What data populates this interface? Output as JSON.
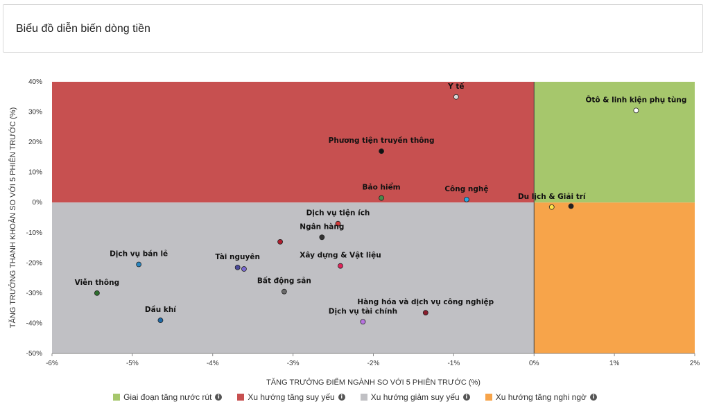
{
  "header": {
    "title": "Biểu đồ diễn biến dòng tiền"
  },
  "colors": {
    "quadrant_top_right": "#a6c76c",
    "quadrant_top_left": "#c75050",
    "quadrant_bottom_left": "#c0c0c4",
    "quadrant_bottom_right": "#f7a44a"
  },
  "chart_data": {
    "type": "scatter",
    "title": "",
    "xlabel": "TĂNG TRƯỞNG ĐIỂM NGÀNH SO VỚI 5 PHIÊN TRƯỚC (%)",
    "ylabel": "TĂNG TRƯỞNG THANH KHOẢN SO VỚI 5 PHIÊN TRƯỚC (%)",
    "xlim": [
      -6,
      2
    ],
    "ylim": [
      -50,
      40
    ],
    "x_ticks": [
      -6,
      -5,
      -4,
      -3,
      -2,
      -1,
      0,
      1,
      2
    ],
    "y_ticks": [
      40,
      30,
      20,
      10,
      0,
      -10,
      -20,
      -30,
      -40,
      -50
    ],
    "x_tick_labels": [
      "-6%",
      "-5%",
      "-4%",
      "-3%",
      "-2%",
      "-1%",
      "0%",
      "1%",
      "2%"
    ],
    "y_tick_labels": [
      "40%",
      "30%",
      "20%",
      "10%",
      "0%",
      "-10%",
      "-20%",
      "-30%",
      "-40%",
      "-50%"
    ],
    "points": [
      {
        "label": "Y tế",
        "x": -0.97,
        "y": 35.0,
        "color": "#d8d8d8"
      },
      {
        "label": "Ôtô & linh kiện phụ tùng",
        "x": 1.27,
        "y": 30.5,
        "color": "#ffffff"
      },
      {
        "label": "Phương tiện truyền thông",
        "x": -1.9,
        "y": 17.0,
        "color": "#111111"
      },
      {
        "label": "Bảo hiểm",
        "x": -1.9,
        "y": 1.5,
        "color": "#4a8a4a"
      },
      {
        "label": "Công nghệ",
        "x": -0.84,
        "y": 1.0,
        "color": "#29a8e0"
      },
      {
        "label": "Du lịch & Giải trí",
        "x": 0.22,
        "y": -1.5,
        "color": "#ffe44a"
      },
      {
        "label": "",
        "x": 0.46,
        "y": -1.2,
        "color": "#222222"
      },
      {
        "label": "Dịch vụ tiện ích",
        "x": -2.44,
        "y": -7.0,
        "color": "#d23a3a"
      },
      {
        "label": "Ngân hàng",
        "x": -2.64,
        "y": -11.5,
        "color": "#333333"
      },
      {
        "label": "",
        "x": -3.16,
        "y": -13.0,
        "color": "#b01e2e"
      },
      {
        "label": "Dịch vụ bán lẻ",
        "x": -4.92,
        "y": -20.5,
        "color": "#2a86c0"
      },
      {
        "label": "Tài nguyên",
        "x": -3.69,
        "y": -21.5,
        "color": "#4a4a9a"
      },
      {
        "label": "",
        "x": -3.61,
        "y": -22.0,
        "color": "#7a6ad2"
      },
      {
        "label": "Xây dựng & Vật liệu",
        "x": -2.41,
        "y": -21.0,
        "color": "#e0245a"
      },
      {
        "label": "Viễn thông",
        "x": -5.44,
        "y": -30.0,
        "color": "#2e6e2e"
      },
      {
        "label": "Bất động sản",
        "x": -3.11,
        "y": -29.5,
        "color": "#6a6a6a"
      },
      {
        "label": "Dầu khí",
        "x": -4.65,
        "y": -39.0,
        "color": "#1e6aa8"
      },
      {
        "label": "Hàng hóa và dịch vụ công nghiệp",
        "x": -1.35,
        "y": -36.5,
        "color": "#8a1e2e"
      },
      {
        "label": "Dịch vụ tài chính",
        "x": -2.13,
        "y": -39.5,
        "color": "#b874e0"
      }
    ],
    "legend_position": "bottom",
    "legend": [
      {
        "name": "Giai đoạn tăng nước rút",
        "color": "#a6c76c"
      },
      {
        "name": "Xu hướng tăng suy yếu",
        "color": "#c75050"
      },
      {
        "name": "Xu hướng giảm suy yếu",
        "color": "#c0c0c4"
      },
      {
        "name": "Xu hướng tăng nghi ngờ",
        "color": "#f7a44a"
      }
    ],
    "grid": false
  }
}
